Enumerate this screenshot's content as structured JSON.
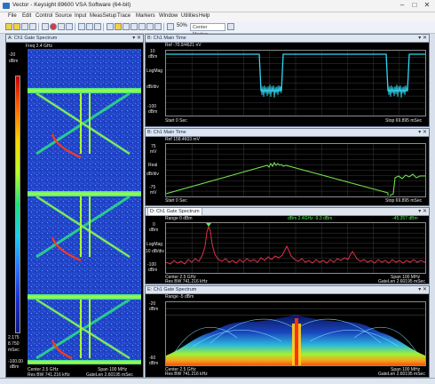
{
  "window": {
    "title": "Vector - Keysight 89600 VSA Software (64-bit)"
  },
  "menu": [
    "File",
    "Edit",
    "Control",
    "Source",
    "Input",
    "MeasSetup",
    "Trace",
    "Markers",
    "Window",
    "Utilities",
    "Help"
  ],
  "toolbar": {
    "zoom": "50%",
    "center_placeholder": "Center Marker"
  },
  "panes": {
    "a": {
      "title": "A: Ch1 Gate Spectrum",
      "top_labels": [
        "Freq 2.4 GHz",
        "dB",
        "-20",
        "-40"
      ],
      "scale_top": "-20",
      "scale_unit": "dBm",
      "scale_bottom": "-100.00",
      "scale_bottom_unit": "dBm",
      "left_labels": [
        "2.175",
        "8.750"
      ],
      "left_unit": "mSec",
      "footer_left": "Center 2.5 GHz",
      "footer_right": "Span 100 MHz",
      "footer2_left": "Res BW 741.216 kHz",
      "footer2_right": "GateLen 2.60195 mSec"
    },
    "b": {
      "title": "B: Ch1 Main Time",
      "ref": "Ref -70.9/4621 nV",
      "y_labels": [
        "10",
        "dBm",
        "LogMag",
        "dB/div",
        "-100",
        "dBm"
      ],
      "start": "Start 0 Sec",
      "stop": "Stop 69.895 mSec"
    },
    "c": {
      "title": "B: Ch1 Main Time",
      "ref": "Ref 158.4603 mV",
      "y_labels": [
        "75",
        "mV",
        "Real",
        "dB/div",
        "-75",
        "mV"
      ],
      "start": "Start 0 Sec",
      "stop": "Stop 69.895 mSec"
    },
    "d": {
      "title": "D: Ch1 Gate Spectrum",
      "ref": "Range 0 dBm",
      "marker_text": "dBm 2.4GHz -9.3 dBm",
      "marker_right": "-45.357 dBm",
      "y_labels": [
        "0",
        "dBm",
        "LogMag",
        "10 dB/div",
        "-100",
        "dBm"
      ],
      "footer_left": "Center 2.5 GHz",
      "footer2_left": "Res BW 741.216 kHz",
      "footer_right": "Span 100 MHz",
      "footer2_right": "GateLen 2.60195 mSec"
    },
    "e": {
      "title": "E: Ch1 Gate Spectrum",
      "ref": "Range -5 dBm",
      "y_labels": [
        "-20",
        "dBm",
        "-60",
        "dBm"
      ],
      "footer_left": "Center 2.5 GHz",
      "footer2_left": "Res BW 741.216 kHz",
      "footer_right": "Span 100 MHz",
      "footer2_right": "GateLen 2.60195 mSec"
    }
  },
  "colors": {
    "trace_cyan": "#33d6f0",
    "trace_green": "#6fe04a",
    "trace_red": "#e0304a",
    "grid": "#3a3a3a",
    "waterfall_bg": "#1b3fbf"
  }
}
